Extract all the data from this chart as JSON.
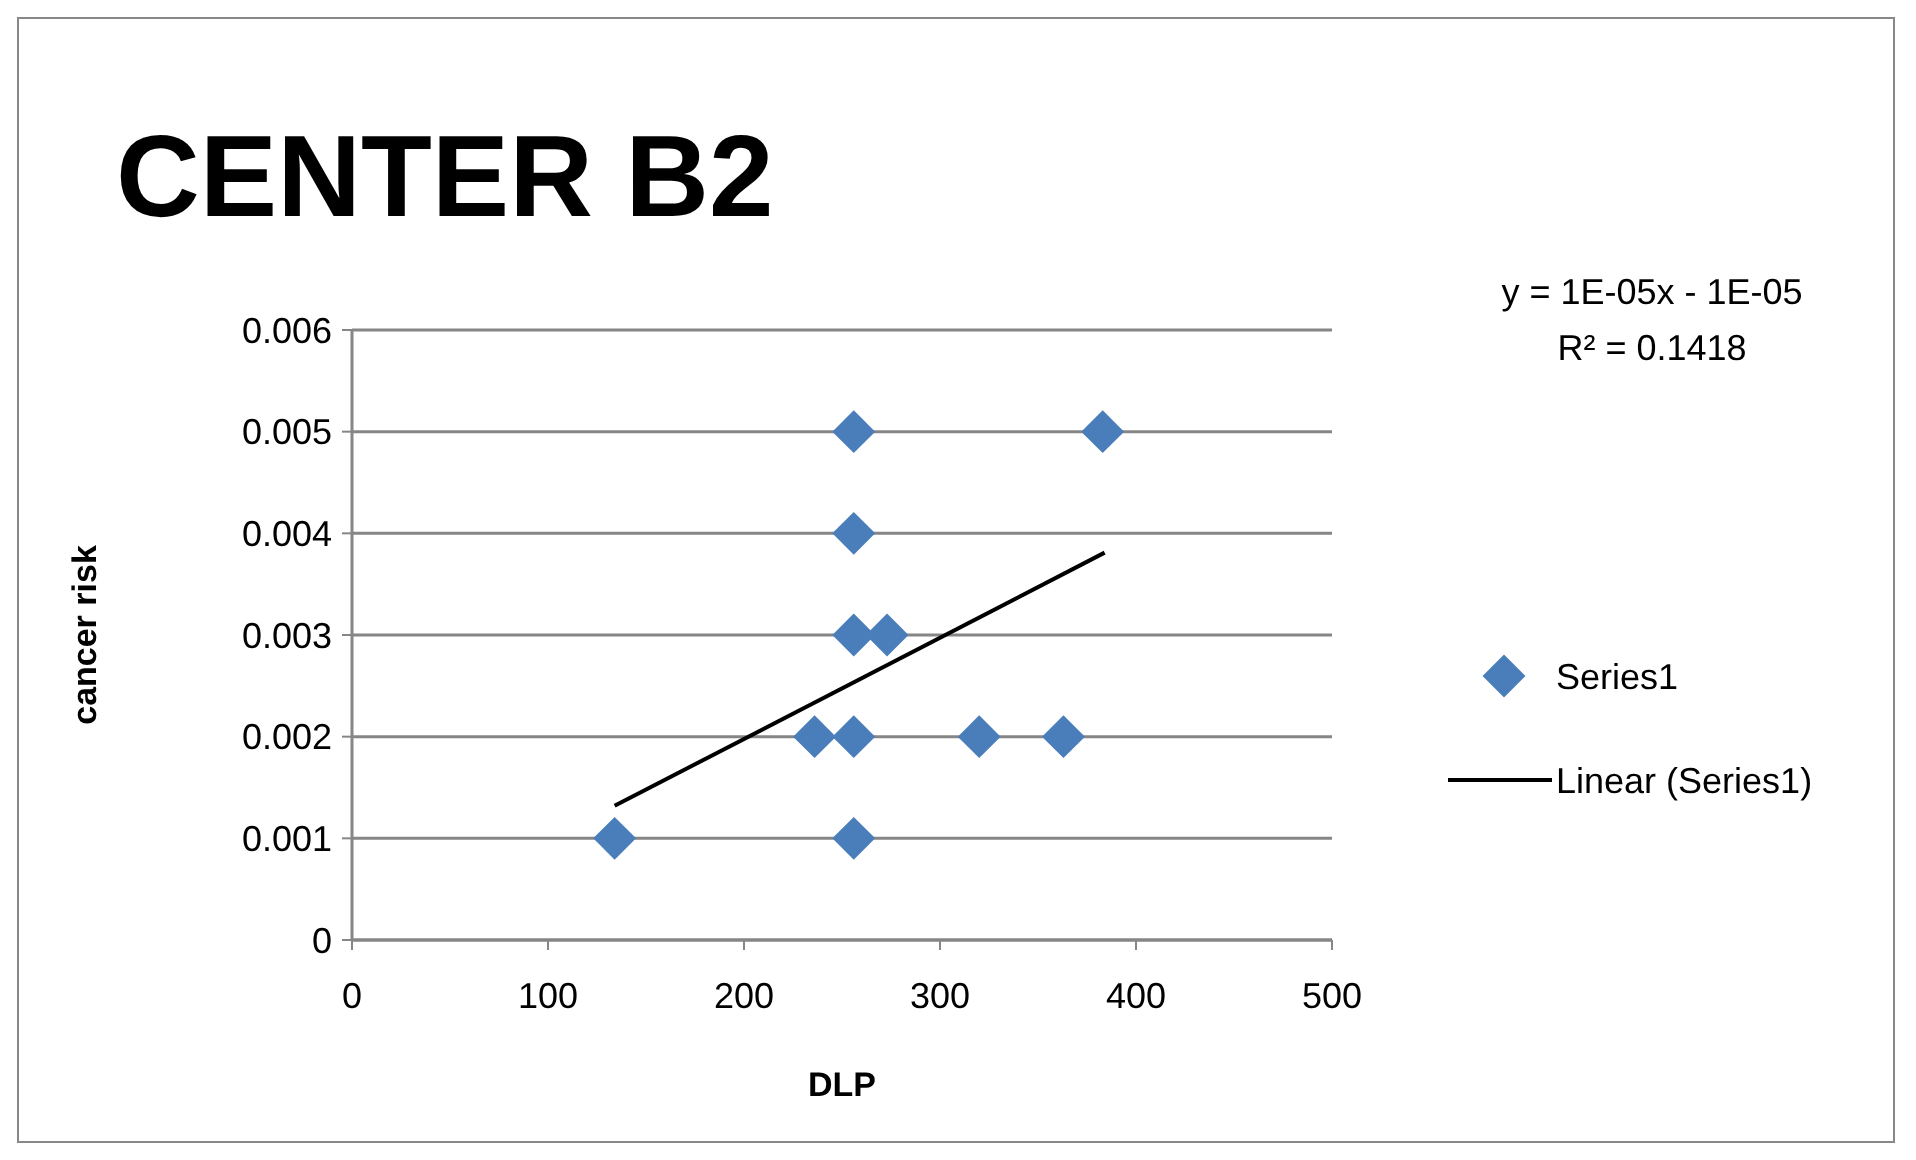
{
  "chart_data": {
    "type": "scatter",
    "title": "CENTER B2",
    "xlabel": "DLP",
    "ylabel": "cancer risk",
    "xlim": [
      0,
      500
    ],
    "xticks": [
      0,
      100,
      200,
      300,
      400,
      500
    ],
    "ylim": [
      0,
      0.006
    ],
    "yticks": [
      0,
      0.001,
      0.002,
      0.003,
      0.004,
      0.005,
      0.006
    ],
    "grid": "y",
    "legend": "right",
    "annotations": [
      "y = 1E-05x - 1E-05",
      "R² = 0.1418"
    ],
    "series": [
      {
        "name": "Series1",
        "marker": "diamond",
        "color": "#4a7ebb",
        "x": [
          134,
          256,
          236,
          256,
          320,
          363,
          256,
          273,
          256,
          256,
          383
        ],
        "values": [
          0.001,
          0.001,
          0.002,
          0.002,
          0.002,
          0.002,
          0.003,
          0.003,
          0.004,
          0.005,
          0.005
        ]
      },
      {
        "name": "Linear (Series1)",
        "type": "line",
        "color": "#000000",
        "line_style": "solid",
        "x": [
          134,
          384
        ],
        "values": [
          0.00132,
          0.00381
        ]
      }
    ]
  }
}
